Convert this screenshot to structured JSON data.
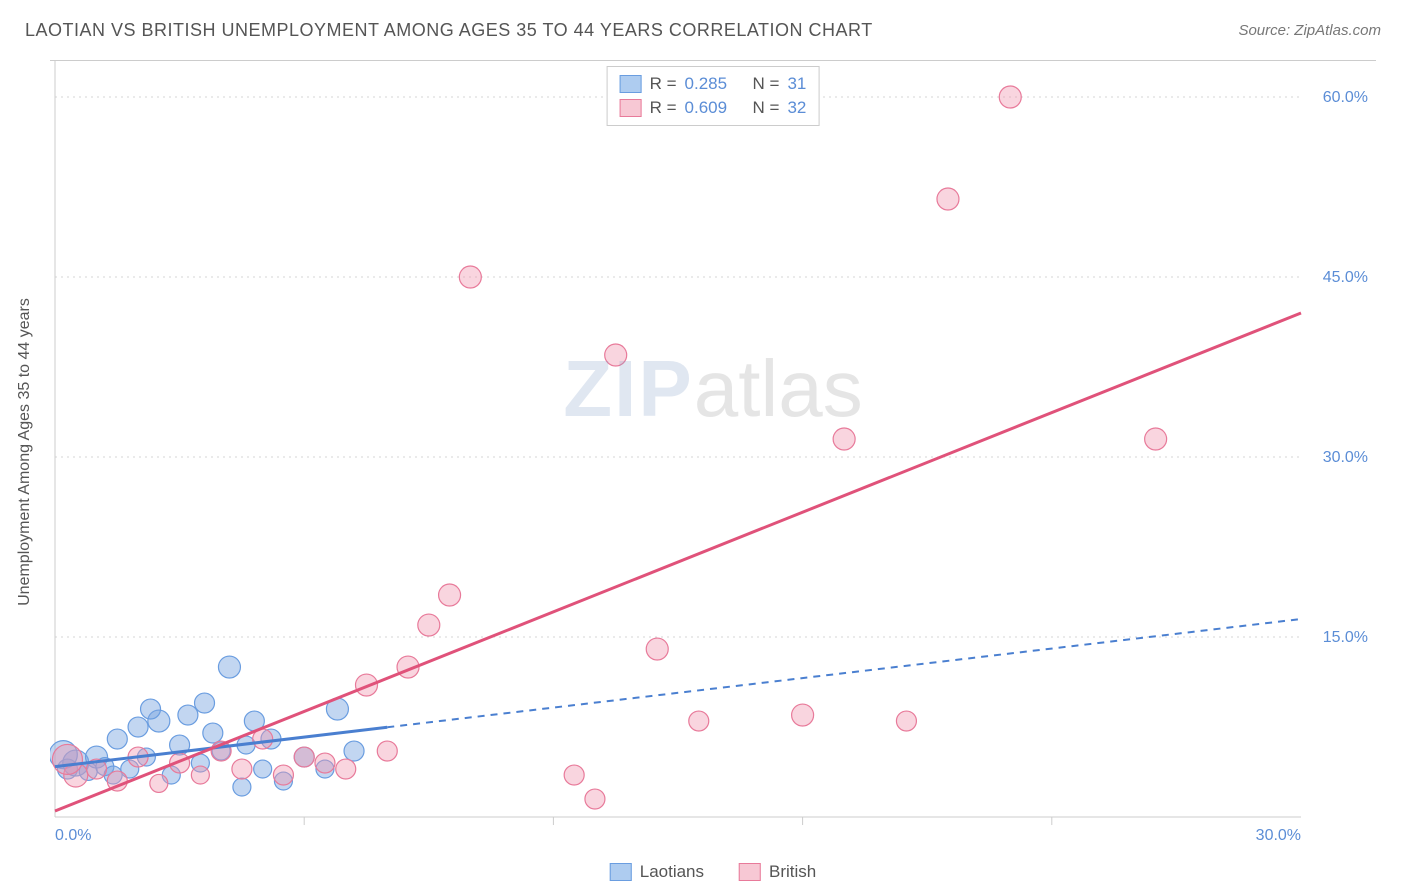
{
  "title": "LAOTIAN VS BRITISH UNEMPLOYMENT AMONG AGES 35 TO 44 YEARS CORRELATION CHART",
  "source": "Source: ZipAtlas.com",
  "y_axis_label": "Unemployment Among Ages 35 to 44 years",
  "watermark_zip": "ZIP",
  "watermark_atlas": "atlas",
  "series": [
    {
      "name": "Laotians",
      "swatch_fill": "#aeccf0",
      "swatch_stroke": "#6a9de0",
      "point_fill": "rgba(120,165,225,0.45)",
      "point_stroke": "#6a9de0",
      "line_color": "#4a7fd0",
      "line_dash": "none",
      "solid_line_xmax": 8.0,
      "r_value": "0.285",
      "n_value": "31",
      "trend_y_at_x0": 4.2,
      "trend_y_at_x30": 16.5,
      "points": [
        {
          "x": 0.3,
          "y": 4.0,
          "r": 10
        },
        {
          "x": 0.5,
          "y": 4.5,
          "r": 13
        },
        {
          "x": 0.8,
          "y": 3.8,
          "r": 9
        },
        {
          "x": 1.0,
          "y": 5.0,
          "r": 11
        },
        {
          "x": 1.2,
          "y": 4.2,
          "r": 9
        },
        {
          "x": 1.5,
          "y": 6.5,
          "r": 10
        },
        {
          "x": 1.8,
          "y": 4.0,
          "r": 9
        },
        {
          "x": 2.0,
          "y": 7.5,
          "r": 10
        },
        {
          "x": 2.2,
          "y": 5.0,
          "r": 9
        },
        {
          "x": 2.5,
          "y": 8.0,
          "r": 11
        },
        {
          "x": 2.8,
          "y": 3.5,
          "r": 9
        },
        {
          "x": 3.0,
          "y": 6.0,
          "r": 10
        },
        {
          "x": 3.2,
          "y": 8.5,
          "r": 10
        },
        {
          "x": 3.5,
          "y": 4.5,
          "r": 9
        },
        {
          "x": 3.8,
          "y": 7.0,
          "r": 10
        },
        {
          "x": 4.0,
          "y": 5.5,
          "r": 9
        },
        {
          "x": 4.2,
          "y": 12.5,
          "r": 11
        },
        {
          "x": 4.5,
          "y": 2.5,
          "r": 9
        },
        {
          "x": 4.8,
          "y": 8.0,
          "r": 10
        },
        {
          "x": 5.0,
          "y": 4.0,
          "r": 9
        },
        {
          "x": 5.2,
          "y": 6.5,
          "r": 10
        },
        {
          "x": 5.5,
          "y": 3.0,
          "r": 9
        },
        {
          "x": 6.0,
          "y": 5.0,
          "r": 10
        },
        {
          "x": 6.5,
          "y": 4.0,
          "r": 9
        },
        {
          "x": 6.8,
          "y": 9.0,
          "r": 11
        },
        {
          "x": 7.2,
          "y": 5.5,
          "r": 10
        },
        {
          "x": 3.6,
          "y": 9.5,
          "r": 10
        },
        {
          "x": 2.3,
          "y": 9.0,
          "r": 10
        },
        {
          "x": 1.4,
          "y": 3.5,
          "r": 9
        },
        {
          "x": 4.6,
          "y": 6.0,
          "r": 9
        },
        {
          "x": 0.2,
          "y": 5.2,
          "r": 14
        }
      ]
    },
    {
      "name": "British",
      "swatch_fill": "#f7c8d4",
      "swatch_stroke": "#e87a9a",
      "point_fill": "rgba(240,150,175,0.40)",
      "point_stroke": "#e87a9a",
      "line_color": "#e0527a",
      "line_dash": "none",
      "solid_line_xmax": 30.0,
      "r_value": "0.609",
      "n_value": "32",
      "trend_y_at_x0": 0.5,
      "trend_y_at_x30": 42.0,
      "points": [
        {
          "x": 0.5,
          "y": 3.5,
          "r": 12
        },
        {
          "x": 1.0,
          "y": 4.0,
          "r": 10
        },
        {
          "x": 1.5,
          "y": 3.0,
          "r": 10
        },
        {
          "x": 2.0,
          "y": 5.0,
          "r": 10
        },
        {
          "x": 2.5,
          "y": 2.8,
          "r": 9
        },
        {
          "x": 3.0,
          "y": 4.5,
          "r": 10
        },
        {
          "x": 3.5,
          "y": 3.5,
          "r": 9
        },
        {
          "x": 4.0,
          "y": 5.5,
          "r": 10
        },
        {
          "x": 4.5,
          "y": 4.0,
          "r": 10
        },
        {
          "x": 5.5,
          "y": 3.5,
          "r": 10
        },
        {
          "x": 6.0,
          "y": 5.0,
          "r": 10
        },
        {
          "x": 6.5,
          "y": 4.5,
          "r": 10
        },
        {
          "x": 7.5,
          "y": 11.0,
          "r": 11
        },
        {
          "x": 8.0,
          "y": 5.5,
          "r": 10
        },
        {
          "x": 8.5,
          "y": 12.5,
          "r": 11
        },
        {
          "x": 9.0,
          "y": 16.0,
          "r": 11
        },
        {
          "x": 9.5,
          "y": 18.5,
          "r": 11
        },
        {
          "x": 10.0,
          "y": 45.0,
          "r": 11
        },
        {
          "x": 12.5,
          "y": 3.5,
          "r": 10
        },
        {
          "x": 13.0,
          "y": 1.5,
          "r": 10
        },
        {
          "x": 13.5,
          "y": 38.5,
          "r": 11
        },
        {
          "x": 14.5,
          "y": 14.0,
          "r": 11
        },
        {
          "x": 15.5,
          "y": 8.0,
          "r": 10
        },
        {
          "x": 18.0,
          "y": 8.5,
          "r": 11
        },
        {
          "x": 19.0,
          "y": 31.5,
          "r": 11
        },
        {
          "x": 20.5,
          "y": 8.0,
          "r": 10
        },
        {
          "x": 21.5,
          "y": 51.5,
          "r": 11
        },
        {
          "x": 23.0,
          "y": 60.0,
          "r": 11
        },
        {
          "x": 26.5,
          "y": 31.5,
          "r": 11
        },
        {
          "x": 5.0,
          "y": 6.5,
          "r": 10
        },
        {
          "x": 0.3,
          "y": 4.8,
          "r": 15
        },
        {
          "x": 7.0,
          "y": 4.0,
          "r": 10
        }
      ]
    }
  ],
  "x_axis": {
    "min": 0,
    "max": 30,
    "labels": [
      {
        "v": 0,
        "t": "0.0%"
      },
      {
        "v": 30,
        "t": "30.0%"
      }
    ],
    "ticks": [
      6,
      12,
      18,
      24
    ]
  },
  "y_axis": {
    "min": 0,
    "max": 63,
    "labels": [
      {
        "v": 15,
        "t": "15.0%"
      },
      {
        "v": 30,
        "t": "30.0%"
      },
      {
        "v": 45,
        "t": "45.0%"
      },
      {
        "v": 60,
        "t": "60.0%"
      }
    ]
  },
  "grid_color": "#d5d5d5",
  "axis_color": "#cccccc",
  "text_color": "#555555",
  "value_color": "#5b8dd6",
  "background": "#ffffff"
}
